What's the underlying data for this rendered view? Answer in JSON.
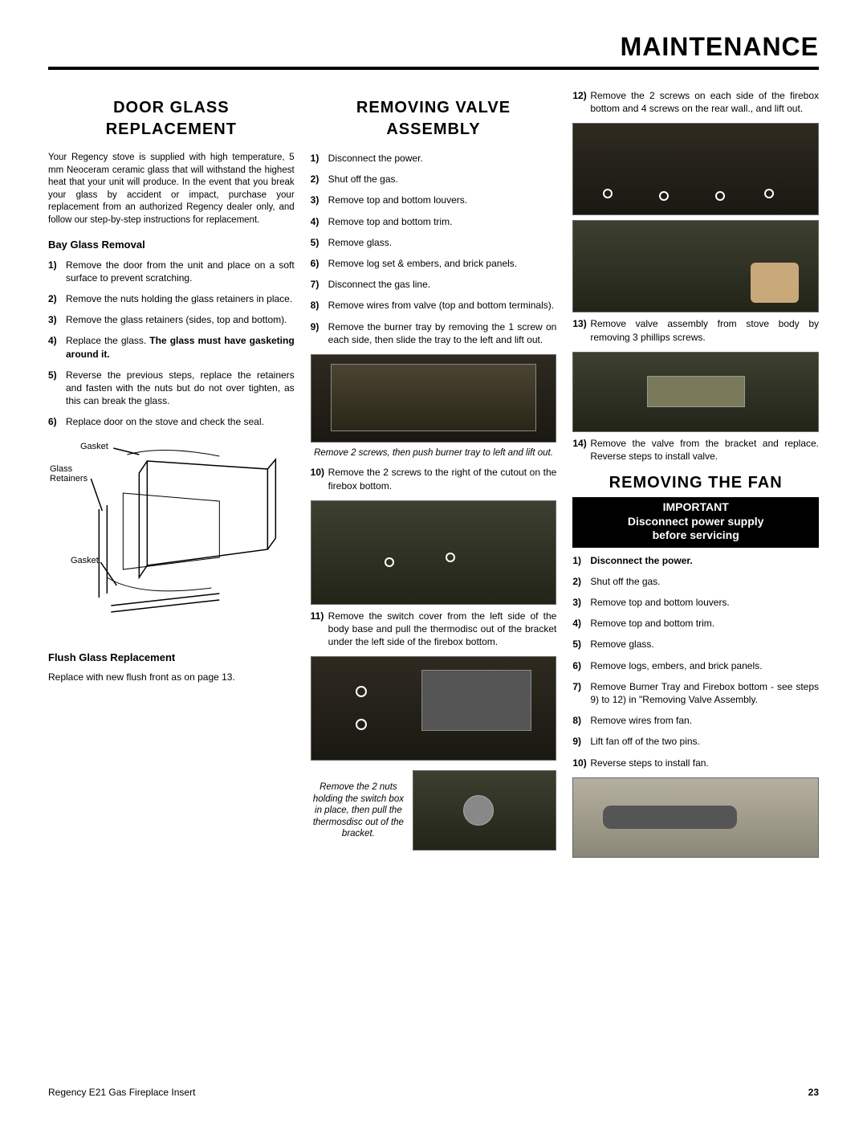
{
  "header": {
    "title": "MAINTENANCE"
  },
  "footer": {
    "product": "Regency E21 Gas Fireplace Insert",
    "page": "23"
  },
  "col1": {
    "title": "DOOR GLASS REPLACEMENT",
    "intro": "Your Regency stove is supplied with high temperature, 5 mm Neoceram ceramic glass that will withstand the highest heat that your unit will produce. In the event that you break your glass by accident or impact, purchase your replacement from an authorized Regency dealer only, and follow our step-by-step instructions for replacement.",
    "sub1": "Bay Glass Removal",
    "steps1": [
      "Remove the door from the unit and place on a soft surface to prevent scratching.",
      "Remove the nuts holding the glass retainers in place.",
      "Remove the glass retainers (sides, top and bottom).",
      "Replace the glass. <b>The glass must have gasketing around it.</b>",
      "Reverse the previous steps, replace the retainers and fasten with the nuts but do not over tighten, as this can break the glass.",
      "Replace door on the stove and check the seal."
    ],
    "diagram_labels": {
      "gasket_top": "Gasket",
      "retainers": "Glass\nRetainers",
      "gasket_bottom": "Gasket"
    },
    "sub2": "Flush Glass Replacement",
    "flush_text": "Replace with new flush front as on page 13."
  },
  "col2": {
    "title": "REMOVING VALVE ASSEMBLY",
    "steps_a": [
      "Disconnect  the power.",
      "Shut off the gas.",
      "Remove top and bottom louvers.",
      "Remove top and bottom trim.",
      "Remove glass.",
      "Remove  log set & embers, and brick panels.",
      "Disconnect the gas line.",
      "Remove wires from valve (top and bottom terminals).",
      "Remove the burner tray by removing the 1 screw  on each side, then slide the tray to the left and lift out."
    ],
    "caption1": "Remove 2 screws, then push burner tray to left and lift out.",
    "step10": "Remove the 2 screws  to the right of the cutout on the firebox bottom.",
    "step11": "Remove the switch cover from the left side of the body base and pull the thermodisc out of the bracket under the left side of the firebox bottom.",
    "caption2": "Remove the 2 nuts holding the switch box in place, then pull the thermosdisc out of the bracket."
  },
  "col3": {
    "step12": "Remove the 2 screws on each side of the firebox bottom and 4 screws on the rear wall., and lift out.",
    "step13": "Remove valve assembly from stove body by removing 3 phillips screws.",
    "step14": "Remove the valve from the bracket and replace. Reverse steps to install valve.",
    "title2": "REMOVING THE FAN",
    "warn1": "IMPORTANT",
    "warn2": "Disconnect power supply",
    "warn3": "before servicing",
    "steps_fan": [
      "<b>Disconnect the power.</b>",
      "Shut off the gas.",
      "Remove top and bottom louvers.",
      "Remove top and bottom trim.",
      "Remove glass.",
      "Remove logs, embers,  and brick panels.",
      "Remove Burner Tray and Firebox bottom - see steps 9) to 12) in \"Removing Valve Assembly.",
      "Remove wires from fan.",
      "Lift fan off of the two pins.",
      "Reverse steps to install fan."
    ]
  }
}
